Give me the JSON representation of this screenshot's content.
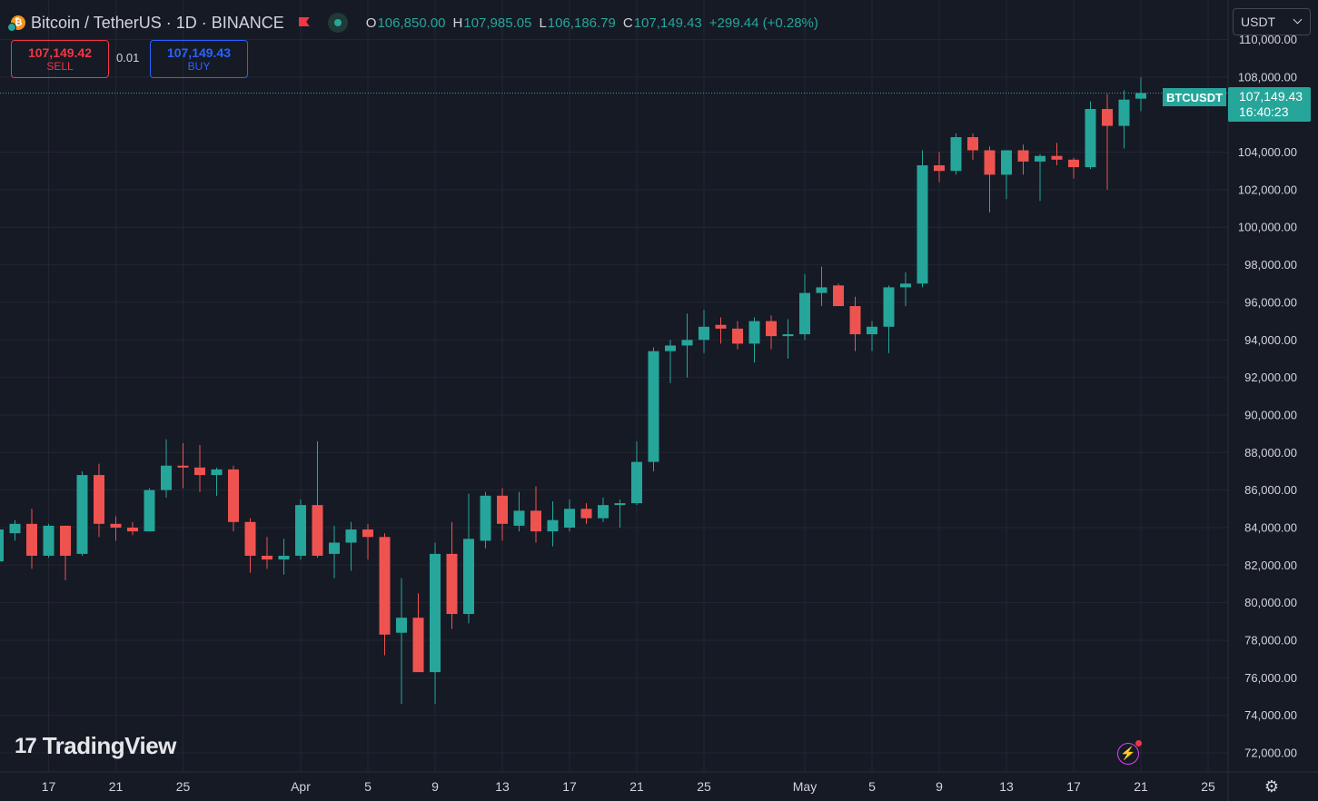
{
  "header": {
    "symbol": "Bitcoin / TetherUS · 1D · BINANCE",
    "coin_glyph": "₿",
    "ohlc": [
      {
        "k": "O",
        "v": "106,850.00"
      },
      {
        "k": "H",
        "v": "107,985.05"
      },
      {
        "k": "L",
        "v": "106,186.79"
      },
      {
        "k": "C",
        "v": "107,149.43"
      },
      {
        "k": "",
        "v": "+299.44 (+0.28%)"
      }
    ]
  },
  "trade": {
    "sell_price": "107,149.42",
    "sell_label": "SELL",
    "spread": "0.01",
    "buy_price": "107,149.43",
    "buy_label": "BUY"
  },
  "currency": "USDT",
  "branding": "TradingView",
  "colors": {
    "up": "#26a69a",
    "down": "#ef5350",
    "bg": "#161a25",
    "grid": "#232632",
    "text": "#d1d4dc",
    "price_line": "#26a69a"
  },
  "chart_data": {
    "type": "candlestick",
    "title": "Bitcoin / TetherUS · 1D · BINANCE",
    "ylim": [
      71000,
      111000
    ],
    "y_ticks": [
      "72,000.00",
      "74,000.00",
      "76,000.00",
      "78,000.00",
      "80,000.00",
      "82,000.00",
      "84,000.00",
      "86,000.00",
      "88,000.00",
      "90,000.00",
      "92,000.00",
      "94,000.00",
      "96,000.00",
      "98,000.00",
      "100,000.00",
      "102,000.00",
      "104,000.00",
      "108,000.00",
      "110,000.00"
    ],
    "x_ticks": [
      {
        "label": "17",
        "i": 3
      },
      {
        "label": "21",
        "i": 7
      },
      {
        "label": "25",
        "i": 11
      },
      {
        "label": "Apr",
        "i": 18
      },
      {
        "label": "5",
        "i": 22
      },
      {
        "label": "9",
        "i": 26
      },
      {
        "label": "13",
        "i": 30
      },
      {
        "label": "17",
        "i": 34
      },
      {
        "label": "21",
        "i": 38
      },
      {
        "label": "25",
        "i": 42
      },
      {
        "label": "May",
        "i": 48
      },
      {
        "label": "5",
        "i": 52
      },
      {
        "label": "9",
        "i": 56
      },
      {
        "label": "13",
        "i": 60
      },
      {
        "label": "17",
        "i": 64
      },
      {
        "label": "21",
        "i": 68
      },
      {
        "label": "25",
        "i": 72
      }
    ],
    "candles": [
      [
        82200,
        84600,
        81200,
        83900
      ],
      [
        83700,
        84400,
        83300,
        84200
      ],
      [
        84200,
        85000,
        81800,
        82500
      ],
      [
        82500,
        84200,
        82400,
        84100
      ],
      [
        84100,
        84100,
        81200,
        82500
      ],
      [
        82600,
        87000,
        82500,
        86800
      ],
      [
        86800,
        87400,
        83500,
        84200
      ],
      [
        84200,
        84600,
        83300,
        84000
      ],
      [
        84000,
        84300,
        83600,
        83800
      ],
      [
        83800,
        86100,
        83800,
        86000
      ],
      [
        86000,
        88700,
        85600,
        87300
      ],
      [
        87300,
        88500,
        86100,
        87200
      ],
      [
        87200,
        88400,
        85900,
        86800
      ],
      [
        86800,
        87200,
        85700,
        87100
      ],
      [
        87100,
        87300,
        83800,
        84300
      ],
      [
        84300,
        84500,
        81600,
        82500
      ],
      [
        82500,
        83500,
        81800,
        82300
      ],
      [
        82300,
        83400,
        81500,
        82500
      ],
      [
        82500,
        85500,
        82300,
        85200
      ],
      [
        85200,
        88600,
        82400,
        82500
      ],
      [
        82600,
        84100,
        81300,
        83200
      ],
      [
        83200,
        84300,
        81700,
        83900
      ],
      [
        83900,
        84200,
        82300,
        83500
      ],
      [
        83500,
        83700,
        77200,
        78300
      ],
      [
        78400,
        81300,
        74600,
        79200
      ],
      [
        79200,
        80500,
        76300,
        76300
      ],
      [
        76300,
        83200,
        74600,
        82600
      ],
      [
        82600,
        84300,
        78600,
        79400
      ],
      [
        79400,
        85800,
        78900,
        83400
      ],
      [
        83300,
        85900,
        82900,
        85700
      ],
      [
        85700,
        86100,
        83300,
        84200
      ],
      [
        84100,
        85900,
        83800,
        84900
      ],
      [
        84900,
        86200,
        83200,
        83800
      ],
      [
        83800,
        85400,
        83000,
        84400
      ],
      [
        84000,
        85500,
        83800,
        85000
      ],
      [
        85000,
        85300,
        84200,
        84500
      ],
      [
        84500,
        85600,
        84300,
        85200
      ],
      [
        85200,
        85500,
        84000,
        85300
      ],
      [
        85300,
        88600,
        85200,
        87500
      ],
      [
        87500,
        93600,
        87000,
        93400
      ],
      [
        93400,
        94000,
        91700,
        93700
      ],
      [
        93700,
        95400,
        92000,
        94000
      ],
      [
        94000,
        95600,
        93300,
        94700
      ],
      [
        94800,
        95200,
        93800,
        94600
      ],
      [
        94600,
        95000,
        93500,
        93800
      ],
      [
        93800,
        95200,
        92800,
        95000
      ],
      [
        95000,
        95300,
        93500,
        94200
      ],
      [
        94200,
        95100,
        93000,
        94300
      ],
      [
        94300,
        97500,
        94000,
        96500
      ],
      [
        96500,
        97900,
        95800,
        96800
      ],
      [
        96900,
        97000,
        95800,
        95800
      ],
      [
        95800,
        96300,
        93400,
        94300
      ],
      [
        94300,
        95000,
        93400,
        94700
      ],
      [
        94700,
        96900,
        93300,
        96800
      ],
      [
        96800,
        97600,
        95800,
        97000
      ],
      [
        97000,
        104100,
        96800,
        103300
      ],
      [
        103300,
        104000,
        102400,
        103000
      ],
      [
        103000,
        105000,
        102800,
        104800
      ],
      [
        104800,
        105000,
        103600,
        104100
      ],
      [
        104100,
        104300,
        100800,
        102800
      ],
      [
        102800,
        104000,
        101500,
        104100
      ],
      [
        104100,
        104400,
        102800,
        103500
      ],
      [
        103500,
        103900,
        101400,
        103800
      ],
      [
        103800,
        104500,
        103300,
        103600
      ],
      [
        103600,
        103700,
        102600,
        103200
      ],
      [
        103200,
        106700,
        103100,
        106300
      ],
      [
        106300,
        107100,
        102000,
        105400
      ],
      [
        105400,
        107300,
        104200,
        106800
      ],
      [
        106850,
        107985.05,
        106186.79,
        107149.43
      ]
    ],
    "last_price_label": "BTCUSDT",
    "last_price": "107,149.43",
    "countdown": "16:40:23",
    "last_value": 107149.43
  }
}
